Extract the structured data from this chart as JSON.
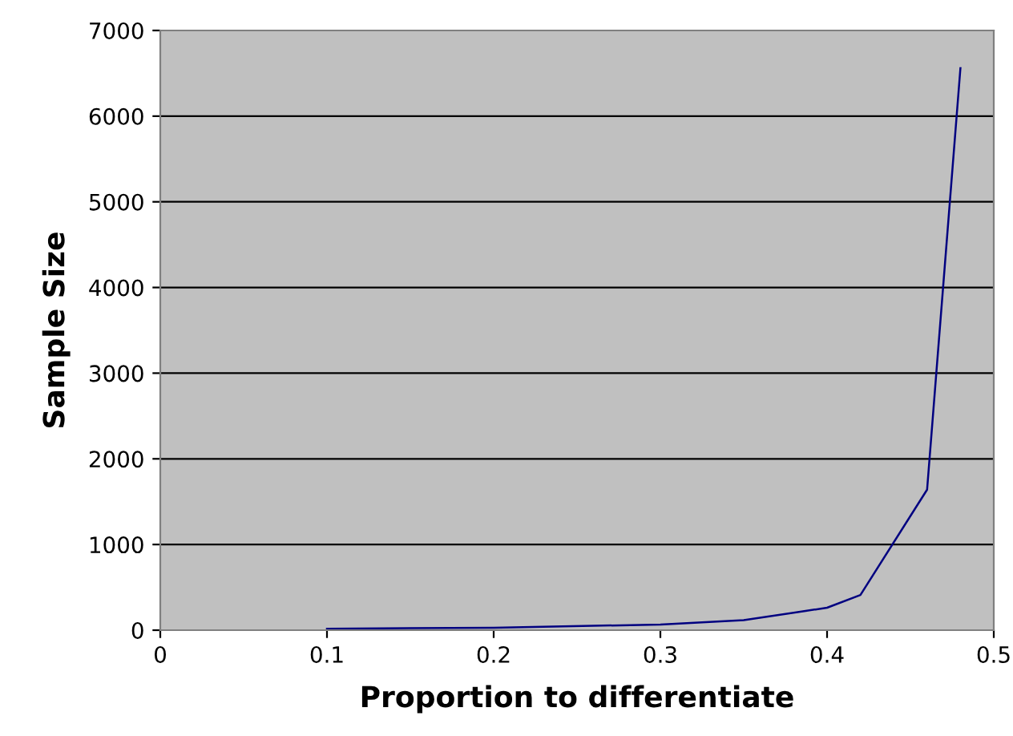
{
  "chart_data": {
    "type": "line",
    "xlabel": "Proportion to differentiate",
    "ylabel": "Sample Size",
    "x": [
      0.1,
      0.2,
      0.3,
      0.35,
      0.4,
      0.42,
      0.46,
      0.48
    ],
    "series": [
      {
        "color": "#000080",
        "values": [
          16,
          29,
          66,
          116,
          262,
          410,
          1640,
          6560
        ]
      }
    ],
    "xlim": [
      0,
      0.5
    ],
    "xticks": [
      0,
      0.1,
      0.2,
      0.3,
      0.4,
      0.5
    ],
    "ylim": [
      0,
      7000
    ],
    "yticks": [
      0,
      1000,
      2000,
      3000,
      4000,
      5000,
      6000,
      7000
    ],
    "grid": "y",
    "legend": false,
    "marker": "none",
    "line_style": "solid"
  }
}
